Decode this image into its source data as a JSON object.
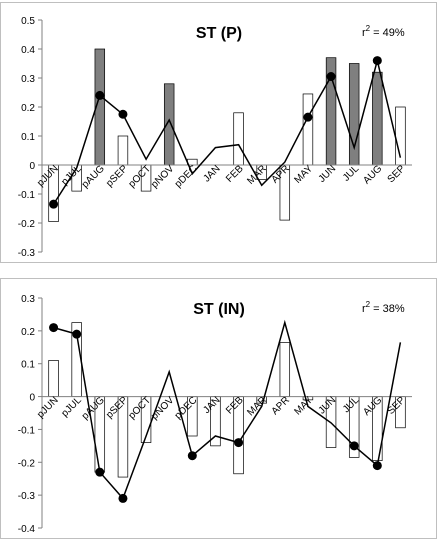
{
  "chart_data": [
    {
      "type": "bar",
      "title": "ST (P)",
      "annotation": {
        "r2_prefix": "r",
        "r2_sup": "2",
        "r2_suffix": " = 49%"
      },
      "categories": [
        "pJUN",
        "pJUL",
        "pAUG",
        "pSEP",
        "pOCT",
        "pNOV",
        "pDEC",
        "JAN",
        "FEB",
        "MAR",
        "APR",
        "MAY",
        "JUN",
        "JUL",
        "AUG",
        "SEP"
      ],
      "ylim": [
        -0.3,
        0.5
      ],
      "yticks": [
        "0.5",
        "0.4",
        "0.3",
        "0.2",
        "0.1",
        "0",
        "-0.1",
        "-0.2",
        "-0.3"
      ],
      "ytick_values": [
        0.5,
        0.4,
        0.3,
        0.2,
        0.1,
        0,
        -0.1,
        -0.2,
        -0.3
      ],
      "bars": [
        -0.195,
        -0.09,
        0.4,
        0.1,
        -0.09,
        0.28,
        0.02,
        0.0,
        0.18,
        -0.05,
        -0.19,
        0.245,
        0.37,
        0.35,
        0.32,
        0.2
      ],
      "significant": [
        false,
        false,
        true,
        false,
        false,
        true,
        false,
        false,
        false,
        false,
        false,
        false,
        true,
        true,
        true,
        false
      ],
      "line": [
        -0.135,
        -0.01,
        0.24,
        0.175,
        0.02,
        0.155,
        -0.03,
        0.06,
        0.07,
        -0.07,
        0.01,
        0.165,
        0.305,
        0.06,
        0.36,
        0.025
      ],
      "markers": [
        true,
        false,
        true,
        true,
        false,
        false,
        false,
        false,
        false,
        false,
        false,
        true,
        true,
        false,
        true,
        false
      ],
      "colors": {
        "significant_bar": "#7f7f7f",
        "bar": "#ffffff",
        "stroke": "#000000"
      }
    },
    {
      "type": "bar",
      "title": "ST (IN)",
      "annotation": {
        "r2_prefix": "r",
        "r2_sup": "2",
        "r2_suffix": " = 38%"
      },
      "categories": [
        "pJUN",
        "pJUL",
        "pAUG",
        "pSEP",
        "pOCT",
        "pNOV",
        "pDEC",
        "JAN",
        "FEB",
        "MAR",
        "APR",
        "MAY",
        "JUN",
        "JUL",
        "AUG",
        "SEP"
      ],
      "ylim": [
        -0.4,
        0.3
      ],
      "yticks": [
        "0.3",
        "0.2",
        "0.1",
        "0",
        "-0.1",
        "-0.2",
        "-0.3",
        "-0.4"
      ],
      "ytick_values": [
        0.3,
        0.2,
        0.1,
        0,
        -0.1,
        -0.2,
        -0.3,
        -0.4
      ],
      "bars": [
        0.11,
        0.225,
        -0.23,
        -0.245,
        -0.14,
        0.0,
        -0.12,
        -0.15,
        -0.235,
        -0.02,
        0.165,
        -0.01,
        -0.155,
        -0.185,
        -0.195,
        -0.095
      ],
      "significant": [
        false,
        false,
        false,
        false,
        false,
        false,
        false,
        false,
        false,
        false,
        false,
        false,
        false,
        false,
        false,
        false
      ],
      "line": [
        0.21,
        0.19,
        -0.23,
        -0.31,
        -0.12,
        0.075,
        -0.18,
        -0.12,
        -0.14,
        -0.03,
        0.225,
        -0.03,
        -0.08,
        -0.15,
        -0.21,
        0.165
      ],
      "markers": [
        true,
        true,
        true,
        true,
        false,
        false,
        true,
        false,
        true,
        false,
        false,
        false,
        false,
        true,
        true,
        false
      ],
      "colors": {
        "significant_bar": "#7f7f7f",
        "bar": "#ffffff",
        "stroke": "#000000"
      }
    }
  ]
}
